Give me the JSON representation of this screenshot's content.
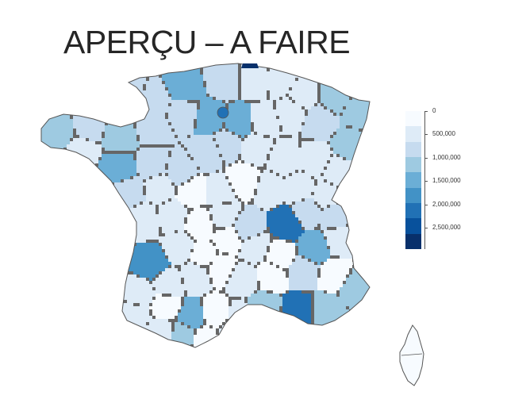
{
  "title": "APERÇU – A FAIRE",
  "map": {
    "outline_color": "#555555",
    "background": "#ffffff"
  },
  "legend": {
    "colors": [
      "#f7fbff",
      "#deebf7",
      "#c6dbef",
      "#9ecae1",
      "#6baed6",
      "#4292c6",
      "#2171b5",
      "#08519c",
      "#08306b"
    ],
    "ticks": [
      "0",
      "500,000",
      "1,000,000",
      "1,500,000",
      "2,000,000",
      "2,500,000"
    ]
  }
}
